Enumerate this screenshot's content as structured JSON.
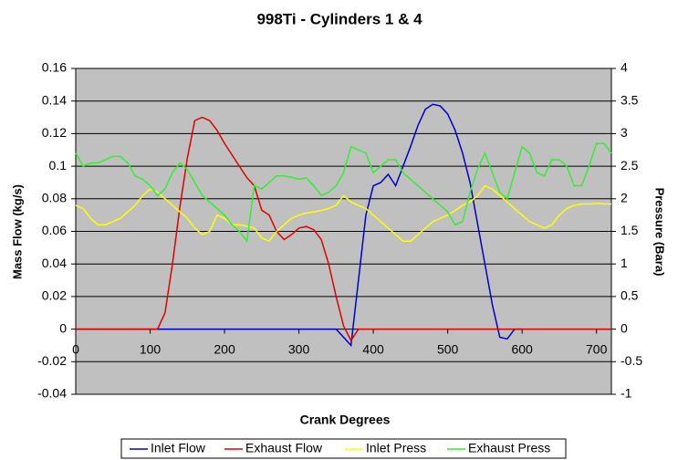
{
  "chart_data": {
    "type": "line",
    "title": "998Ti - Cylinders 1 & 4",
    "x_label": "Crank Degrees",
    "y_label": "Mass Flow (kg/s)",
    "y2_label": "Pressure (Bara)",
    "x": [
      0,
      10,
      20,
      30,
      40,
      50,
      60,
      70,
      80,
      90,
      100,
      110,
      120,
      130,
      140,
      150,
      160,
      170,
      180,
      190,
      200,
      210,
      220,
      230,
      240,
      250,
      260,
      270,
      280,
      290,
      300,
      310,
      320,
      330,
      340,
      350,
      360,
      370,
      380,
      390,
      400,
      410,
      420,
      430,
      440,
      450,
      460,
      470,
      480,
      490,
      500,
      510,
      520,
      530,
      540,
      550,
      560,
      570,
      580,
      590,
      600,
      610,
      620,
      630,
      640,
      650,
      660,
      670,
      680,
      690,
      700,
      710,
      720
    ],
    "xlim": [
      0,
      720
    ],
    "xticks": [
      0,
      100,
      200,
      300,
      400,
      500,
      600,
      700
    ],
    "ylim": [
      -0.04,
      0.16
    ],
    "yticks": [
      0.16,
      0.14,
      0.12,
      0.1,
      0.08,
      0.06,
      0.04,
      0.02,
      0,
      -0.02,
      -0.04
    ],
    "y2lim": [
      -1,
      4
    ],
    "y2ticks": [
      4,
      3.5,
      3,
      2.5,
      2,
      1.5,
      1,
      0.5,
      0,
      -0.5,
      -1
    ],
    "grid": true,
    "background": "#c0c0c0",
    "legend": "bottom",
    "series": [
      {
        "name": "Inlet Flow",
        "color": "#0000cc",
        "values": [
          0,
          0,
          0,
          0,
          0,
          0,
          0,
          0,
          0,
          0,
          0,
          0,
          0,
          0,
          0,
          0,
          0,
          0,
          0,
          0,
          0,
          0,
          0,
          0,
          0,
          0,
          0,
          0,
          0,
          0,
          0,
          0,
          0,
          0,
          0,
          0,
          -0.005,
          -0.01,
          0.03,
          0.07,
          0.088,
          0.09,
          0.095,
          0.088,
          0.1,
          0.112,
          0.125,
          0.135,
          0.138,
          0.137,
          0.132,
          0.122,
          0.108,
          0.09,
          0.065,
          0.04,
          0.015,
          -0.005,
          -0.006,
          0,
          0,
          null,
          null,
          null,
          null,
          null,
          null,
          null,
          null,
          null,
          null,
          null,
          null
        ]
      },
      {
        "name": "Exhaust Flow",
        "color": "#e00000",
        "values": [
          0,
          0,
          0,
          0,
          0,
          0,
          0,
          0,
          0,
          0,
          0,
          0,
          0.01,
          0.04,
          0.075,
          0.105,
          0.128,
          0.13,
          0.128,
          0.122,
          0.114,
          0.107,
          0.1,
          0.093,
          0.088,
          0.073,
          0.07,
          0.06,
          0.055,
          0.058,
          0.062,
          0.063,
          0.061,
          0.055,
          0.04,
          0.02,
          0.002,
          -0.007,
          0,
          0,
          0,
          0,
          0,
          0,
          0,
          0,
          0,
          0,
          0,
          0,
          0,
          0,
          0,
          0,
          0,
          0,
          0,
          0,
          0,
          0,
          0,
          0,
          0,
          0,
          0,
          0,
          0,
          0,
          0,
          0,
          0,
          0,
          0
        ]
      },
      {
        "name": "Inlet Press",
        "color": "#ffff00",
        "axis": "y2",
        "values": [
          1.9,
          1.85,
          1.7,
          1.6,
          1.6,
          1.65,
          1.7,
          1.8,
          1.9,
          2.05,
          2.15,
          2.1,
          2.0,
          1.9,
          1.8,
          1.7,
          1.55,
          1.45,
          1.5,
          1.75,
          1.7,
          1.6,
          1.6,
          1.58,
          1.55,
          1.4,
          1.35,
          1.5,
          1.6,
          1.7,
          1.75,
          1.78,
          1.8,
          1.82,
          1.85,
          1.9,
          2.05,
          1.95,
          1.9,
          1.85,
          1.75,
          1.65,
          1.55,
          1.45,
          1.35,
          1.35,
          1.45,
          1.55,
          1.65,
          1.7,
          1.75,
          1.82,
          1.9,
          1.95,
          2.05,
          2.2,
          2.15,
          2.05,
          1.95,
          1.85,
          1.75,
          1.65,
          1.6,
          1.55,
          1.6,
          1.75,
          1.85,
          1.9,
          1.92,
          1.92,
          1.93,
          1.92,
          1.92
        ]
      },
      {
        "name": "Exhaust Press",
        "color": "#33ee33",
        "axis": "y2",
        "values": [
          2.7,
          2.5,
          2.55,
          2.55,
          2.6,
          2.65,
          2.65,
          2.55,
          2.35,
          2.3,
          2.2,
          2.05,
          2.15,
          2.4,
          2.55,
          2.45,
          2.25,
          2.05,
          1.95,
          1.85,
          1.75,
          1.6,
          1.5,
          1.35,
          2.2,
          2.15,
          2.25,
          2.35,
          2.35,
          2.33,
          2.3,
          2.32,
          2.2,
          2.05,
          2.1,
          2.2,
          2.4,
          2.8,
          2.75,
          2.7,
          2.4,
          2.5,
          2.6,
          2.6,
          2.4,
          2.3,
          2.2,
          2.1,
          2.0,
          1.9,
          1.8,
          1.6,
          1.65,
          2.1,
          2.45,
          2.7,
          2.4,
          2.1,
          2.0,
          2.4,
          2.8,
          2.7,
          2.4,
          2.35,
          2.6,
          2.6,
          2.5,
          2.2,
          2.2,
          2.5,
          2.85,
          2.85,
          2.7
        ]
      }
    ]
  }
}
